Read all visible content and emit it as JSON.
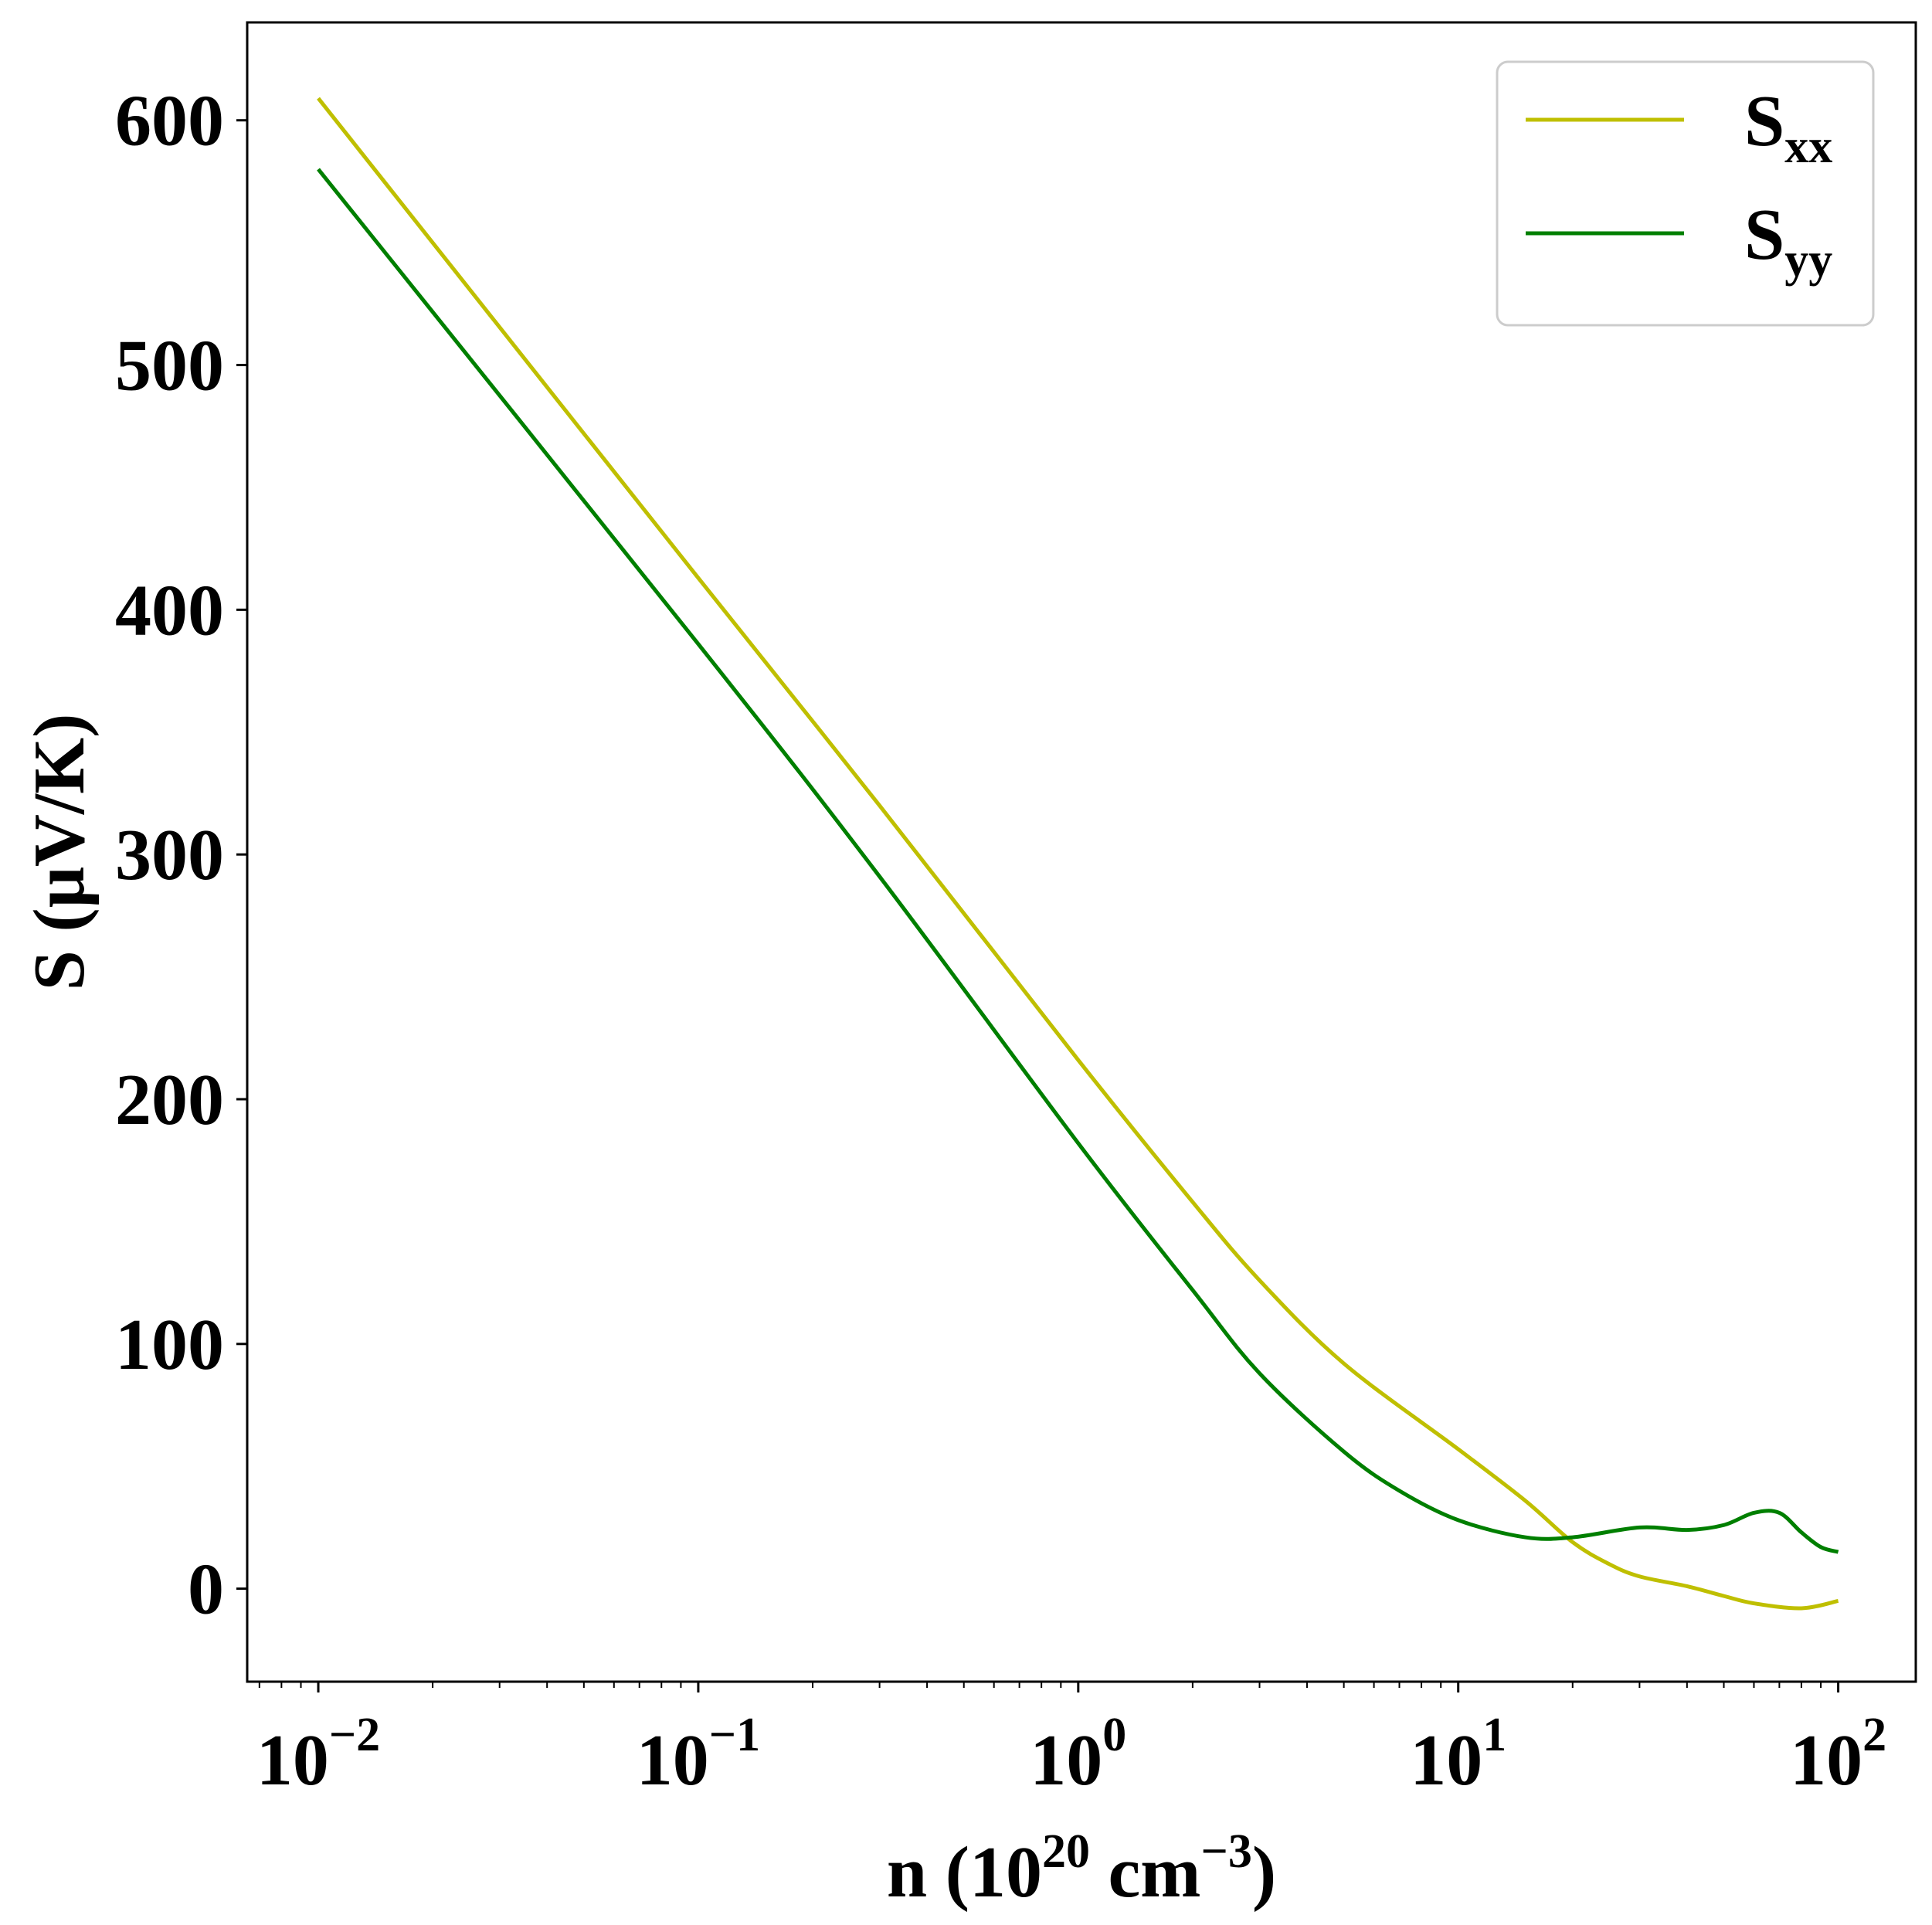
{
  "chart_data": {
    "type": "line",
    "xlabel": {
      "base": "n (10",
      "sup1": "20",
      "mid": " cm",
      "sup2": "−3",
      "end": ")"
    },
    "ylabel": "S (μV/K)",
    "x_scale": "log",
    "xlim": [
      0.0065,
      160
    ],
    "ylim": [
      -38,
      640
    ],
    "grid": false,
    "legend_position": "top-right",
    "x_ticks": [
      {
        "value": 0.01,
        "base": "10",
        "exp": "−2"
      },
      {
        "value": 0.1,
        "base": "10",
        "exp": "−1"
      },
      {
        "value": 1,
        "base": "10",
        "exp": "0"
      },
      {
        "value": 10,
        "base": "10",
        "exp": "1"
      },
      {
        "value": 100,
        "base": "10",
        "exp": "2"
      }
    ],
    "y_ticks": [
      0,
      100,
      200,
      300,
      400,
      500,
      600
    ],
    "series": [
      {
        "name": "S_xx",
        "legend_base": "S",
        "legend_sub": "xx",
        "color": "#bfbf00",
        "points": [
          [
            0.01,
            609
          ],
          [
            0.1,
            413
          ],
          [
            0.3,
            320
          ],
          [
            1,
            216
          ],
          [
            2,
            158
          ],
          [
            3,
            126
          ],
          [
            5,
            92
          ],
          [
            10,
            57
          ],
          [
            15,
            36
          ],
          [
            20,
            19
          ],
          [
            25,
            10
          ],
          [
            30,
            5
          ],
          [
            40,
            1
          ],
          [
            50,
            -3
          ],
          [
            60,
            -6
          ],
          [
            80,
            -8
          ],
          [
            100,
            -5
          ]
        ]
      },
      {
        "name": "S_yy",
        "legend_base": "S",
        "legend_sub": "yy",
        "color": "#007f00",
        "points": [
          [
            0.01,
            580
          ],
          [
            0.1,
            386
          ],
          [
            0.3,
            291
          ],
          [
            1,
            182
          ],
          [
            2,
            122
          ],
          [
            3,
            88
          ],
          [
            5,
            56
          ],
          [
            7,
            40
          ],
          [
            10,
            28
          ],
          [
            15,
            21
          ],
          [
            20,
            21
          ],
          [
            30,
            25
          ],
          [
            40,
            24
          ],
          [
            50,
            26
          ],
          [
            60,
            31
          ],
          [
            70,
            31
          ],
          [
            80,
            23
          ],
          [
            90,
            17
          ],
          [
            100,
            15
          ]
        ]
      }
    ]
  }
}
